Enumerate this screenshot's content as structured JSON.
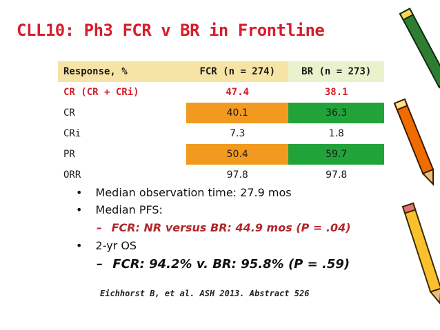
{
  "title": "CLL10: Ph3 FCR v BR in Frontline",
  "table": {
    "headers": [
      "Response, %",
      "FCR (n = 274)",
      "BR (n = 273)"
    ],
    "rows": [
      {
        "label": "CR (CR + CRi)",
        "fcr": "47.4",
        "br": "38.1"
      },
      {
        "label": "CR",
        "fcr": "40.1",
        "br": "36.3"
      },
      {
        "label": "CRi",
        "fcr": "7.3",
        "br": "1.8"
      },
      {
        "label": "PR",
        "fcr": "50.4",
        "br": "59.7"
      },
      {
        "label": "ORR",
        "fcr": "97.8",
        "br": "97.8"
      }
    ]
  },
  "bullets": {
    "b1": "Median observation time: 27.9 mos",
    "b2": "Median PFS:",
    "b2_sub": "FCR: NR versus BR: 44.9 mos (P = .04)",
    "b3": "2-yr OS",
    "b3_sub": "FCR: 94.2% v. BR: 95.8% (P = .59)",
    "bullet_char": "•",
    "dash_char": "–"
  },
  "reference": "Eichhorst B, et al. ASH 2013. Abstract 526",
  "colors": {
    "title": "#d41f2b",
    "orange": "#f29a1f",
    "green": "#22a33a",
    "header_fcr": "#f6e3a6",
    "header_br": "#e8f2cd"
  }
}
